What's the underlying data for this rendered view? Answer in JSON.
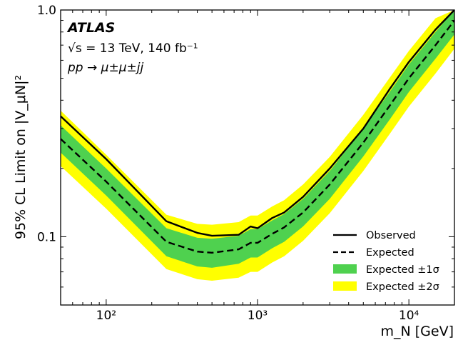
{
  "chart_data": {
    "type": "line",
    "title": "",
    "annotations": {
      "experiment": "ATLAS",
      "energy": "√s = 13 TeV, 140 fb⁻¹",
      "process": "pp → μ±μ±jj"
    },
    "xlabel": "m_N [GeV]",
    "ylabel": "95% CL Limit on |V_μN|²",
    "xscale": "log",
    "yscale": "log",
    "xlim": [
      50,
      20000
    ],
    "ylim": [
      0.05,
      1.0
    ],
    "x_ticks": [
      {
        "value": 100,
        "label": "10²"
      },
      {
        "value": 1000,
        "label": "10³"
      },
      {
        "value": 10000,
        "label": "10⁴"
      }
    ],
    "y_ticks": [
      {
        "value": 0.1,
        "label": "0.1"
      },
      {
        "value": 1.0,
        "label": "1.0"
      }
    ],
    "legend_position": "bottom-right",
    "grid": false,
    "x": [
      50,
      100,
      250,
      400,
      500,
      750,
      900,
      1000,
      1250,
      1500,
      2000,
      3000,
      5000,
      7500,
      10000,
      15000,
      20000
    ],
    "series": [
      {
        "name": "Observed",
        "style": "solid",
        "color": "#000000",
        "values": [
          0.34,
          0.22,
          0.117,
          0.104,
          0.101,
          0.102,
          0.111,
          0.109,
          0.121,
          0.128,
          0.15,
          0.2,
          0.3,
          0.45,
          0.59,
          0.82,
          1.0
        ]
      },
      {
        "name": "Expected",
        "style": "dashed",
        "color": "#000000",
        "values": [
          0.27,
          0.175,
          0.095,
          0.086,
          0.085,
          0.088,
          0.094,
          0.094,
          0.103,
          0.11,
          0.128,
          0.17,
          0.26,
          0.38,
          0.5,
          0.7,
          0.9
        ]
      }
    ],
    "bands": [
      {
        "name": "Expected ±1σ",
        "color": "#4fd14f",
        "lower": [
          0.235,
          0.152,
          0.082,
          0.074,
          0.073,
          0.076,
          0.081,
          0.081,
          0.089,
          0.095,
          0.111,
          0.147,
          0.226,
          0.33,
          0.435,
          0.61,
          0.78
        ],
        "upper": [
          0.31,
          0.2,
          0.109,
          0.099,
          0.098,
          0.101,
          0.108,
          0.108,
          0.118,
          0.126,
          0.147,
          0.195,
          0.3,
          0.437,
          0.575,
          0.8,
          1.0
        ]
      },
      {
        "name": "Expected ±2σ",
        "color": "#ffff00",
        "lower": [
          0.205,
          0.133,
          0.072,
          0.065,
          0.064,
          0.066,
          0.07,
          0.07,
          0.077,
          0.082,
          0.096,
          0.127,
          0.195,
          0.285,
          0.375,
          0.525,
          0.675
        ],
        "upper": [
          0.36,
          0.23,
          0.125,
          0.114,
          0.113,
          0.116,
          0.124,
          0.124,
          0.136,
          0.145,
          0.17,
          0.225,
          0.345,
          0.505,
          0.66,
          0.92,
          1.0
        ]
      }
    ]
  }
}
